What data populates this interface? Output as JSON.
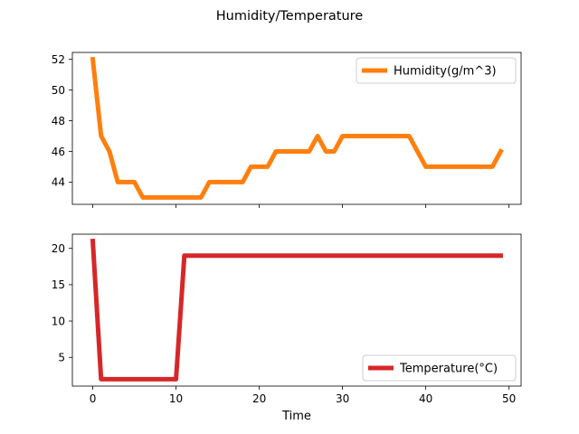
{
  "figure": {
    "title": "Humidity/Temperature"
  },
  "chart_data": [
    {
      "type": "line",
      "title": "",
      "xlabel": "",
      "ylabel": "",
      "xlim": [
        -2.45,
        51.45
      ],
      "ylim": [
        42.55,
        52.45
      ],
      "xticks": [
        0,
        10,
        20,
        30,
        40,
        50
      ],
      "show_xtick_labels": false,
      "yticks": [
        44,
        46,
        48,
        50,
        52
      ],
      "grid": false,
      "legend": "top-right",
      "series": [
        {
          "name": "Humidity(g/m^3)",
          "color": "#ff7f0e",
          "x": [
            0,
            1,
            2,
            3,
            4,
            5,
            6,
            7,
            8,
            9,
            10,
            11,
            12,
            13,
            14,
            15,
            16,
            17,
            18,
            19,
            20,
            21,
            22,
            23,
            24,
            25,
            26,
            27,
            28,
            29,
            30,
            31,
            32,
            33,
            34,
            35,
            36,
            37,
            38,
            39,
            40,
            41,
            42,
            43,
            44,
            45,
            46,
            47,
            48,
            49
          ],
          "y": [
            52,
            47,
            46,
            44,
            44,
            44,
            43,
            43,
            43,
            43,
            43,
            43,
            43,
            43,
            44,
            44,
            44,
            44,
            44,
            45,
            45,
            45,
            46,
            46,
            46,
            46,
            46,
            47,
            46,
            46,
            47,
            47,
            47,
            47,
            47,
            47,
            47,
            47,
            47,
            46,
            45,
            45,
            45,
            45,
            45,
            45,
            45,
            45,
            45,
            46
          ]
        }
      ]
    },
    {
      "type": "line",
      "title": "",
      "xlabel": "Time",
      "ylabel": "",
      "xlim": [
        -2.45,
        51.45
      ],
      "ylim": [
        1.05,
        21.95
      ],
      "xticks": [
        0,
        10,
        20,
        30,
        40,
        50
      ],
      "show_xtick_labels": true,
      "yticks": [
        5,
        10,
        15,
        20
      ],
      "grid": false,
      "legend": "bottom-right",
      "series": [
        {
          "name": "Temperature(°C)",
          "color": "#d62728",
          "x": [
            0,
            1,
            2,
            3,
            4,
            5,
            6,
            7,
            8,
            9,
            10,
            11,
            12,
            13,
            14,
            15,
            16,
            17,
            18,
            19,
            20,
            21,
            22,
            23,
            24,
            25,
            26,
            27,
            28,
            29,
            30,
            31,
            32,
            33,
            34,
            35,
            36,
            37,
            38,
            39,
            40,
            41,
            42,
            43,
            44,
            45,
            46,
            47,
            48,
            49
          ],
          "y": [
            21,
            2,
            2,
            2,
            2,
            2,
            2,
            2,
            2,
            2,
            2,
            19,
            19,
            19,
            19,
            19,
            19,
            19,
            19,
            19,
            19,
            19,
            19,
            19,
            19,
            19,
            19,
            19,
            19,
            19,
            19,
            19,
            19,
            19,
            19,
            19,
            19,
            19,
            19,
            19,
            19,
            19,
            19,
            19,
            19,
            19,
            19,
            19,
            19,
            19
          ]
        }
      ]
    }
  ]
}
